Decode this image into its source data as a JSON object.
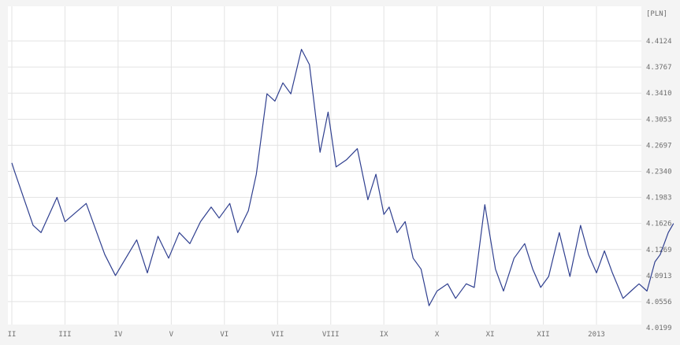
{
  "chart_data": {
    "type": "line",
    "unit": "[PLN]",
    "x_labels": [
      "II",
      "III",
      "IV",
      "V",
      "VI",
      "VII",
      "VIII",
      "IX",
      "X",
      "XI",
      "XII",
      "2013"
    ],
    "y_ticks": [
      "4.4124",
      "4.3767",
      "4.3410",
      "4.3053",
      "4.2697",
      "4.2340",
      "4.1983",
      "4.1626",
      "4.1269",
      "4.0913",
      "4.0556",
      "4.0199"
    ],
    "ylim": [
      4.0199,
      4.4124
    ],
    "grid": true,
    "series": [
      {
        "color": "#2f3f8f",
        "x": [
          0.0,
          0.05,
          0.4,
          0.55,
          0.85,
          1.0,
          1.4,
          1.75,
          1.95,
          2.35,
          2.55,
          2.75,
          2.95,
          3.15,
          3.35,
          3.55,
          3.75,
          3.9,
          4.1,
          4.25,
          4.45,
          4.6,
          4.8,
          4.95,
          5.1,
          5.25,
          5.45,
          5.6,
          5.8,
          5.95,
          6.1,
          6.3,
          6.5,
          6.7,
          6.85,
          7.0,
          7.1,
          7.25,
          7.4,
          7.55,
          7.7,
          7.85,
          8.0,
          8.2,
          8.35,
          8.55,
          8.7,
          8.9,
          9.1,
          9.25,
          9.45,
          9.65,
          9.8,
          9.95,
          10.1,
          10.3,
          10.5,
          10.7,
          10.85,
          11.0,
          11.15,
          11.3,
          11.5,
          11.65,
          11.8
        ],
        "values": [
          4.2455,
          4.234,
          4.16,
          4.15,
          4.1983,
          4.165,
          4.19,
          4.12,
          4.0913,
          4.14,
          4.095,
          4.145,
          4.115,
          4.15,
          4.135,
          4.165,
          4.185,
          4.17,
          4.19,
          4.15,
          4.18,
          4.23,
          4.34,
          4.33,
          4.355,
          4.34,
          4.401,
          4.38,
          4.26,
          4.315,
          4.24,
          4.25,
          4.265,
          4.195,
          4.23,
          4.175,
          4.185,
          4.15,
          4.165,
          4.115,
          4.1,
          4.05,
          4.07,
          4.08,
          4.06,
          4.08,
          4.075,
          4.1883,
          4.1,
          4.07,
          4.115,
          4.135,
          4.1,
          4.075,
          4.09,
          4.15,
          4.09,
          4.16,
          4.12,
          4.095,
          4.125,
          4.095,
          4.06,
          4.07,
          4.08
        ]
      },
      {
        "color": "#2f3f8f",
        "x": [
          11.8,
          11.95,
          12.1,
          12.2,
          12.35,
          12.45
        ],
        "values": [
          4.08,
          4.07,
          4.11,
          4.12,
          4.15,
          4.1626
        ]
      }
    ]
  }
}
